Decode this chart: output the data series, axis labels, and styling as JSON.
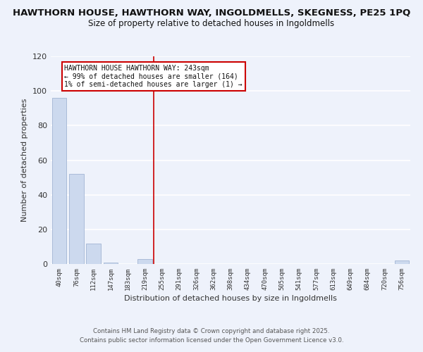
{
  "title": "HAWTHORN HOUSE, HAWTHORN WAY, INGOLDMELLS, SKEGNESS, PE25 1PQ",
  "subtitle": "Size of property relative to detached houses in Ingoldmells",
  "xlabel": "Distribution of detached houses by size in Ingoldmells",
  "ylabel": "Number of detached properties",
  "bar_color": "#ccd9ee",
  "bar_edge_color": "#aabbd8",
  "marker_line_color": "#cc0000",
  "background_color": "#eef2fb",
  "grid_color": "#ffffff",
  "categories": [
    "40sqm",
    "76sqm",
    "112sqm",
    "147sqm",
    "183sqm",
    "219sqm",
    "255sqm",
    "291sqm",
    "326sqm",
    "362sqm",
    "398sqm",
    "434sqm",
    "470sqm",
    "505sqm",
    "541sqm",
    "577sqm",
    "613sqm",
    "649sqm",
    "684sqm",
    "720sqm",
    "756sqm"
  ],
  "values": [
    96,
    52,
    12,
    1,
    0,
    3,
    0,
    0,
    0,
    0,
    0,
    0,
    0,
    0,
    0,
    0,
    0,
    0,
    0,
    0,
    2
  ],
  "ylim": [
    0,
    120
  ],
  "yticks": [
    0,
    20,
    40,
    60,
    80,
    100,
    120
  ],
  "marker_index": 6,
  "annotation_lines": [
    "HAWTHORN HOUSE HAWTHORN WAY: 243sqm",
    "← 99% of detached houses are smaller (164)",
    "1% of semi-detached houses are larger (1) →"
  ],
  "footer_line1": "Contains HM Land Registry data © Crown copyright and database right 2025.",
  "footer_line2": "Contains public sector information licensed under the Open Government Licence v3.0."
}
